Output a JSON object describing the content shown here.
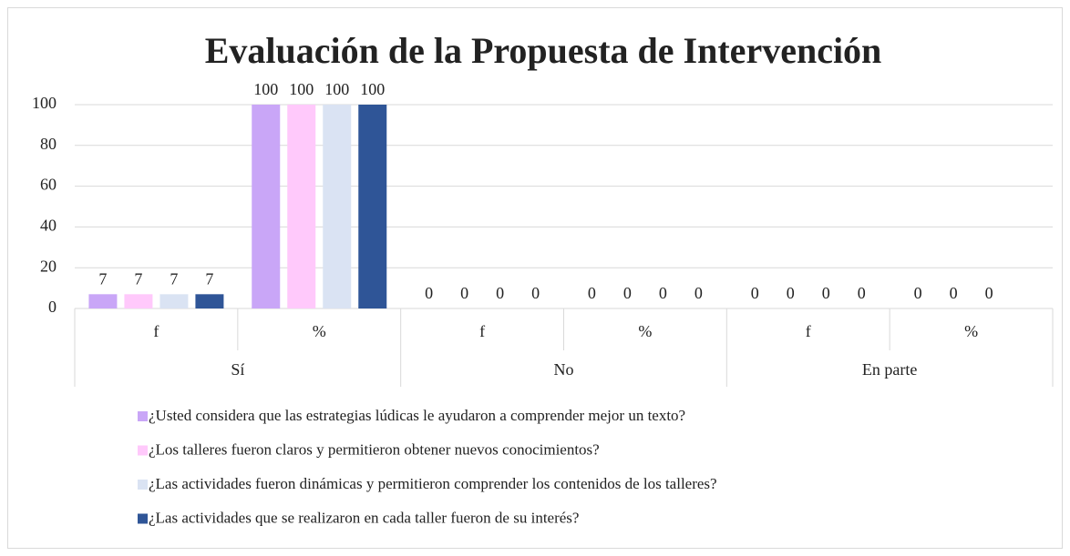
{
  "chart_data": {
    "type": "bar",
    "title": "Evaluación de la Propuesta de Intervención",
    "categories": [
      "f",
      "%",
      "f",
      "%",
      "f",
      "%"
    ],
    "group_labels": [
      "Sí",
      "No",
      "En parte"
    ],
    "series": [
      {
        "name": "¿Usted considera que las estrategias lúdicas le ayudaron a comprender mejor un texto?",
        "color": "#c9a6f7",
        "values": [
          7,
          100,
          0,
          0,
          0,
          0
        ]
      },
      {
        "name": "¿Los talleres fueron claros y permitieron obtener nuevos conocimientos?",
        "color": "#ffc9fb",
        "values": [
          7,
          100,
          0,
          0,
          0,
          0
        ]
      },
      {
        "name": "¿Las actividades fueron dinámicas y permitieron comprender los contenidos de los talleres?",
        "color": "#dae3f3",
        "values": [
          7,
          100,
          0,
          0,
          0,
          0
        ]
      },
      {
        "name": "¿Las actividades que se realizaron en cada taller fueron de su interés?",
        "color": "#2f5597",
        "values": [
          7,
          100,
          0,
          0,
          0,
          null
        ]
      }
    ],
    "ylim": [
      0,
      100
    ],
    "yticks": [
      0,
      20,
      40,
      60,
      80,
      100
    ],
    "grid": true
  }
}
